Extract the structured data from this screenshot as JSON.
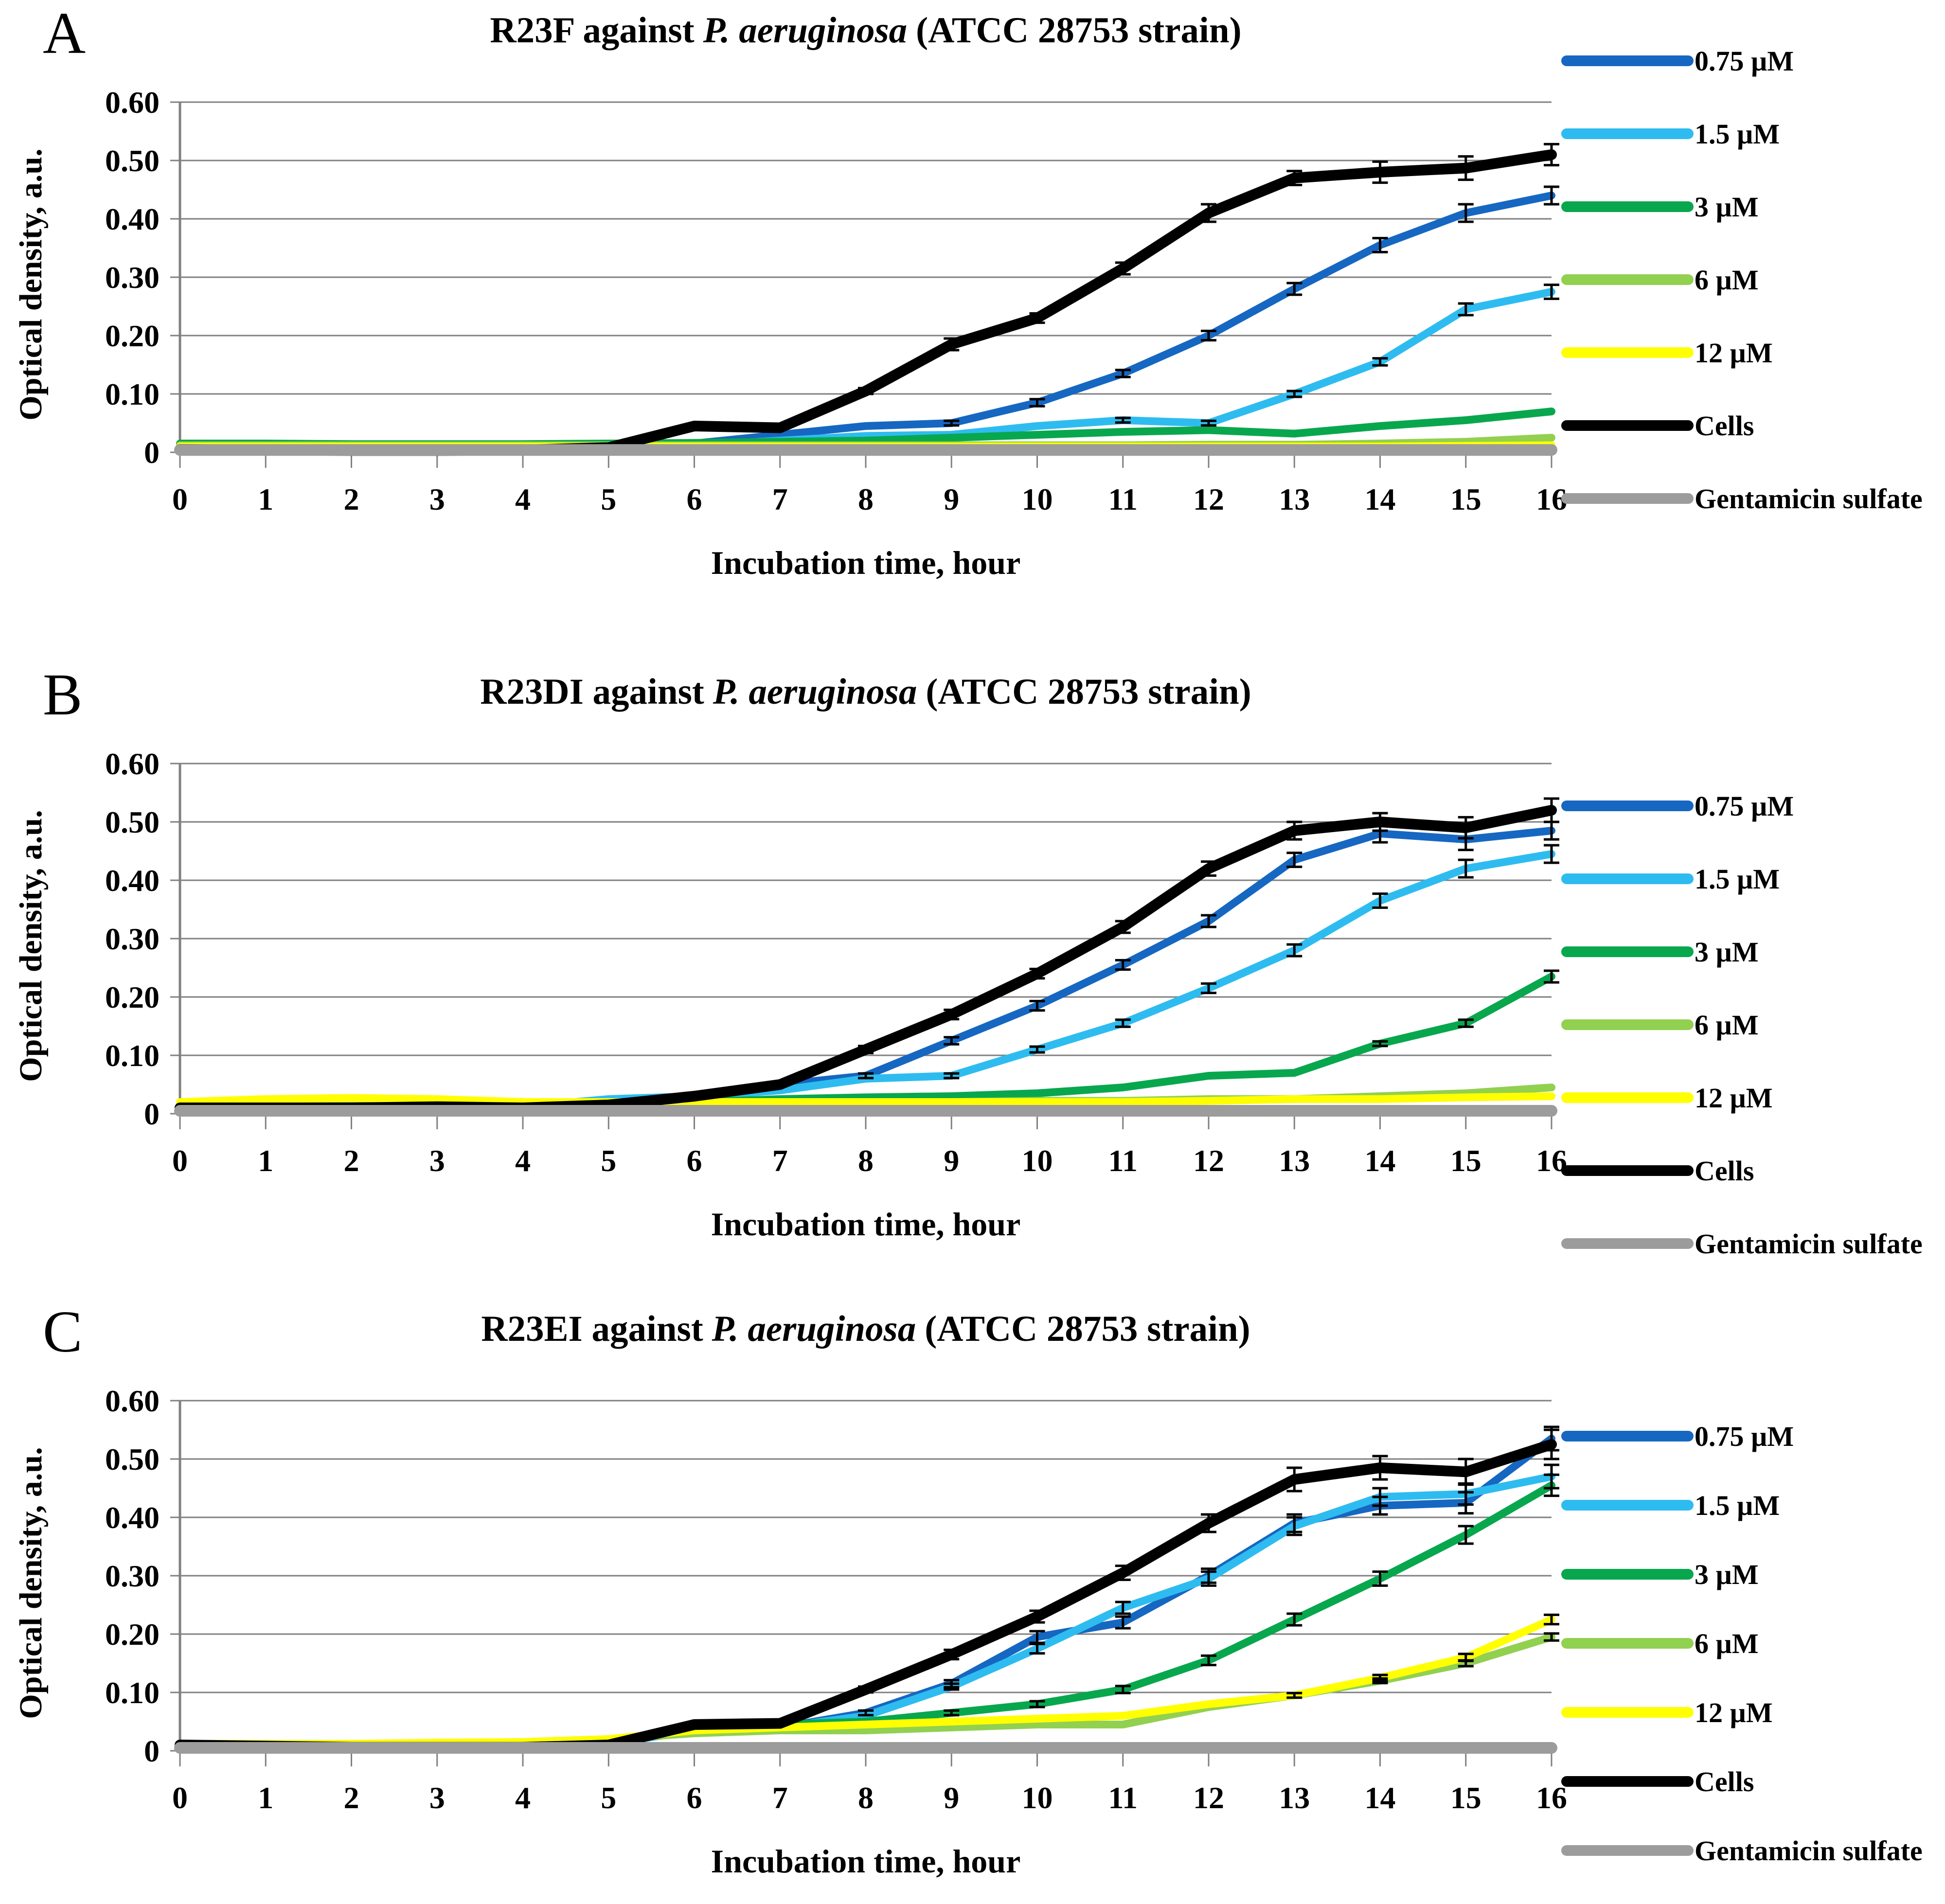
{
  "legend": {
    "entries": [
      {
        "label": "0.75 µM",
        "color": "#1667C1"
      },
      {
        "label": "1.5 µM",
        "color": "#2EBCF0"
      },
      {
        "label": "3 µM",
        "color": "#08A74E"
      },
      {
        "label": "6 µM",
        "color": "#92D050"
      },
      {
        "label": "12 µM",
        "color": "#FFFF00"
      },
      {
        "label": "Cells",
        "color": "#000000"
      },
      {
        "label": "Gentamicin sulfate",
        "color": "#9C9C9C"
      }
    ]
  },
  "chart_data": [
    {
      "type": "line",
      "panel_label": "A",
      "title": "R23F against P. aeruginosa (ATCC 28753 strain)",
      "title_prefix": "R23F against",
      "title_species": "P. aeruginosa",
      "title_suffix": "(ATCC 28753 strain)",
      "xlabel": "Incubation time, hour",
      "ylabel": "Optical density, a.u.",
      "x": [
        0,
        1,
        2,
        3,
        4,
        5,
        6,
        7,
        8,
        9,
        10,
        11,
        12,
        13,
        14,
        15,
        16
      ],
      "ylim": [
        0,
        0.6
      ],
      "ystep": 0.1,
      "yticks": [
        "0.60",
        "0.50",
        "0.40",
        "0.30",
        "0.20",
        "0.10",
        "0"
      ],
      "grid": true,
      "grid_color": "#808080",
      "legend_position": "right",
      "series": [
        {
          "name": "0.75 µM",
          "color": "#1667C1",
          "width": 16,
          "values": [
            0.01,
            0.01,
            0.008,
            0.008,
            0.008,
            0.01,
            0.015,
            0.03,
            0.045,
            0.05,
            0.085,
            0.135,
            0.2,
            0.28,
            0.355,
            0.41,
            0.44
          ],
          "errors": [
            0,
            0,
            0,
            0,
            0,
            0,
            0,
            0,
            0,
            0.004,
            0.006,
            0.006,
            0.008,
            0.01,
            0.012,
            0.015,
            0.015
          ]
        },
        {
          "name": "1.5 µM",
          "color": "#2EBCF0",
          "width": 16,
          "values": [
            0.01,
            0.01,
            0.008,
            0.008,
            0.008,
            0.01,
            0.012,
            0.02,
            0.028,
            0.03,
            0.045,
            0.055,
            0.05,
            0.1,
            0.155,
            0.245,
            0.275
          ],
          "errors": [
            0,
            0,
            0,
            0,
            0,
            0,
            0,
            0,
            0,
            0,
            0,
            0.004,
            0.004,
            0.005,
            0.006,
            0.01,
            0.012
          ]
        },
        {
          "name": "3 µM",
          "color": "#08A74E",
          "width": 16,
          "values": [
            0.015,
            0.015,
            0.014,
            0.014,
            0.014,
            0.015,
            0.016,
            0.018,
            0.02,
            0.025,
            0.03,
            0.035,
            0.038,
            0.032,
            0.045,
            0.055,
            0.07
          ],
          "errors": [
            0,
            0,
            0,
            0,
            0,
            0,
            0,
            0,
            0,
            0,
            0,
            0,
            0,
            0,
            0,
            0,
            0
          ]
        },
        {
          "name": "6 µM",
          "color": "#92D050",
          "width": 16,
          "values": [
            0.012,
            0.012,
            0.012,
            0.012,
            0.012,
            0.012,
            0.012,
            0.012,
            0.012,
            0.012,
            0.012,
            0.012,
            0.013,
            0.013,
            0.015,
            0.018,
            0.025
          ],
          "errors": [
            0,
            0,
            0,
            0,
            0,
            0,
            0,
            0,
            0,
            0,
            0,
            0,
            0,
            0,
            0,
            0,
            0
          ]
        },
        {
          "name": "12 µM",
          "color": "#FFFF00",
          "width": 16,
          "values": [
            0.01,
            0.01,
            0.01,
            0.01,
            0.01,
            0.01,
            0.01,
            0.01,
            0.01,
            0.01,
            0.01,
            0.01,
            0.01,
            0.01,
            0.01,
            0.011,
            0.012
          ],
          "errors": [
            0,
            0,
            0,
            0,
            0,
            0,
            0,
            0,
            0,
            0,
            0,
            0,
            0,
            0,
            0,
            0,
            0
          ]
        },
        {
          "name": "Cells",
          "color": "#000000",
          "width": 22,
          "values": [
            0.005,
            0.004,
            0.003,
            0.003,
            0.004,
            0.008,
            0.045,
            0.042,
            0.105,
            0.185,
            0.23,
            0.315,
            0.41,
            0.47,
            0.48,
            0.487,
            0.51
          ],
          "errors": [
            0,
            0,
            0,
            0,
            0,
            0,
            0,
            0,
            0.005,
            0.01,
            0.008,
            0.01,
            0.015,
            0.012,
            0.018,
            0.02,
            0.018
          ]
        },
        {
          "name": "Gentamicin sulfate",
          "color": "#9C9C9C",
          "width": 24,
          "values": [
            0.004,
            0.004,
            0.004,
            0.004,
            0.004,
            0.004,
            0.004,
            0.004,
            0.004,
            0.004,
            0.004,
            0.004,
            0.004,
            0.004,
            0.004,
            0.004,
            0.004
          ],
          "errors": [
            0,
            0,
            0,
            0,
            0,
            0,
            0,
            0,
            0,
            0,
            0,
            0,
            0,
            0,
            0,
            0,
            0
          ]
        }
      ]
    },
    {
      "type": "line",
      "panel_label": "B",
      "title": "R23DI against P. aeruginosa (ATCC 28753 strain)",
      "title_prefix": "R23DI against",
      "title_species": "P. aeruginosa",
      "title_suffix": "(ATCC 28753 strain)",
      "xlabel": "Incubation time, hour",
      "ylabel": "Optical density, a.u.",
      "x": [
        0,
        1,
        2,
        3,
        4,
        5,
        6,
        7,
        8,
        9,
        10,
        11,
        12,
        13,
        14,
        15,
        16
      ],
      "ylim": [
        0,
        0.6
      ],
      "ystep": 0.1,
      "yticks": [
        "0.60",
        "0.50",
        "0.40",
        "0.30",
        "0.20",
        "0.10",
        "0"
      ],
      "grid": true,
      "grid_color": "#808080",
      "legend_position": "right",
      "series": [
        {
          "name": "0.75 µM",
          "color": "#1667C1",
          "width": 16,
          "values": [
            0.015,
            0.015,
            0.015,
            0.015,
            0.012,
            0.02,
            0.03,
            0.05,
            0.065,
            0.125,
            0.185,
            0.255,
            0.33,
            0.435,
            0.48,
            0.47,
            0.485
          ],
          "errors": [
            0,
            0,
            0,
            0,
            0,
            0,
            0,
            0,
            0.004,
            0.006,
            0.008,
            0.008,
            0.01,
            0.012,
            0.015,
            0.018,
            0.015
          ]
        },
        {
          "name": "1.5 µM",
          "color": "#2EBCF0",
          "width": 16,
          "values": [
            0.015,
            0.015,
            0.015,
            0.015,
            0.012,
            0.025,
            0.03,
            0.04,
            0.06,
            0.065,
            0.11,
            0.155,
            0.215,
            0.28,
            0.365,
            0.42,
            0.445
          ],
          "errors": [
            0,
            0,
            0,
            0,
            0,
            0,
            0,
            0,
            0,
            0.004,
            0.005,
            0.006,
            0.008,
            0.01,
            0.012,
            0.015,
            0.015
          ]
        },
        {
          "name": "3 µM",
          "color": "#08A74E",
          "width": 16,
          "values": [
            0.015,
            0.018,
            0.02,
            0.02,
            0.015,
            0.018,
            0.02,
            0.025,
            0.028,
            0.03,
            0.035,
            0.045,
            0.065,
            0.07,
            0.12,
            0.155,
            0.235
          ],
          "errors": [
            0,
            0,
            0,
            0,
            0,
            0,
            0,
            0,
            0,
            0,
            0,
            0,
            0,
            0,
            0.004,
            0.006,
            0.01
          ]
        },
        {
          "name": "6 µM",
          "color": "#92D050",
          "width": 16,
          "values": [
            0.015,
            0.018,
            0.02,
            0.02,
            0.015,
            0.015,
            0.015,
            0.018,
            0.02,
            0.02,
            0.022,
            0.022,
            0.025,
            0.025,
            0.03,
            0.035,
            0.045
          ],
          "errors": [
            0,
            0,
            0,
            0,
            0,
            0,
            0,
            0,
            0,
            0,
            0,
            0,
            0,
            0,
            0,
            0,
            0
          ]
        },
        {
          "name": "12 µM",
          "color": "#FFFF00",
          "width": 16,
          "values": [
            0.02,
            0.025,
            0.027,
            0.025,
            0.02,
            0.02,
            0.02,
            0.02,
            0.02,
            0.02,
            0.02,
            0.02,
            0.022,
            0.025,
            0.025,
            0.028,
            0.03
          ],
          "errors": [
            0,
            0,
            0,
            0,
            0,
            0,
            0,
            0,
            0,
            0,
            0,
            0,
            0,
            0,
            0,
            0,
            0
          ]
        },
        {
          "name": "Cells",
          "color": "#000000",
          "width": 22,
          "values": [
            0.01,
            0.01,
            0.01,
            0.012,
            0.01,
            0.015,
            0.03,
            0.05,
            0.11,
            0.17,
            0.24,
            0.32,
            0.42,
            0.485,
            0.5,
            0.49,
            0.52
          ],
          "errors": [
            0,
            0,
            0,
            0,
            0,
            0,
            0,
            0,
            0.006,
            0.008,
            0.008,
            0.01,
            0.012,
            0.015,
            0.015,
            0.018,
            0.02
          ]
        },
        {
          "name": "Gentamicin sulfate",
          "color": "#9C9C9C",
          "width": 24,
          "values": [
            0.005,
            0.005,
            0.005,
            0.005,
            0.005,
            0.005,
            0.005,
            0.005,
            0.005,
            0.005,
            0.005,
            0.005,
            0.005,
            0.005,
            0.005,
            0.005,
            0.005
          ],
          "errors": [
            0,
            0,
            0,
            0,
            0,
            0,
            0,
            0,
            0,
            0,
            0,
            0,
            0,
            0,
            0,
            0,
            0
          ]
        }
      ]
    },
    {
      "type": "line",
      "panel_label": "C",
      "title": "R23EI against P. aeruginosa (ATCC 28753 strain)",
      "title_prefix": "R23EI against",
      "title_species": "P. aeruginosa",
      "title_suffix": "(ATCC 28753 strain)",
      "xlabel": "Incubation time, hour",
      "ylabel": "Optical density, a.u.",
      "x": [
        0,
        1,
        2,
        3,
        4,
        5,
        6,
        7,
        8,
        9,
        10,
        11,
        12,
        13,
        14,
        15,
        16
      ],
      "ylim": [
        0,
        0.6
      ],
      "ystep": 0.1,
      "yticks": [
        "0.60",
        "0.50",
        "0.40",
        "0.30",
        "0.20",
        "0.10",
        "0"
      ],
      "grid": true,
      "grid_color": "#808080",
      "legend_position": "right",
      "series": [
        {
          "name": "0.75 µM",
          "color": "#1667C1",
          "width": 16,
          "values": [
            0.01,
            0.01,
            0.008,
            0.008,
            0.008,
            0.012,
            0.035,
            0.04,
            0.065,
            0.115,
            0.195,
            0.22,
            0.3,
            0.39,
            0.42,
            0.425,
            0.535
          ],
          "errors": [
            0,
            0,
            0,
            0,
            0,
            0,
            0,
            0,
            0.004,
            0.006,
            0.01,
            0.01,
            0.012,
            0.015,
            0.015,
            0.018,
            0.02
          ]
        },
        {
          "name": "1.5 µM",
          "color": "#2EBCF0",
          "width": 16,
          "values": [
            0.01,
            0.01,
            0.008,
            0.008,
            0.008,
            0.012,
            0.035,
            0.04,
            0.06,
            0.11,
            0.175,
            0.245,
            0.295,
            0.385,
            0.435,
            0.44,
            0.47
          ],
          "errors": [
            0,
            0,
            0,
            0,
            0,
            0,
            0,
            0,
            0,
            0.005,
            0.008,
            0.01,
            0.012,
            0.015,
            0.015,
            0.018,
            0.02
          ]
        },
        {
          "name": "3 µM",
          "color": "#08A74E",
          "width": 16,
          "values": [
            0.012,
            0.012,
            0.012,
            0.012,
            0.012,
            0.015,
            0.035,
            0.045,
            0.05,
            0.065,
            0.08,
            0.105,
            0.155,
            0.225,
            0.295,
            0.37,
            0.455
          ],
          "errors": [
            0,
            0,
            0,
            0,
            0,
            0,
            0,
            0,
            0,
            0.004,
            0.005,
            0.006,
            0.008,
            0.01,
            0.012,
            0.015,
            0.018
          ]
        },
        {
          "name": "6 µM",
          "color": "#92D050",
          "width": 16,
          "values": [
            0.012,
            0.012,
            0.01,
            0.012,
            0.015,
            0.02,
            0.03,
            0.035,
            0.035,
            0.04,
            0.045,
            0.045,
            0.075,
            0.095,
            0.12,
            0.15,
            0.195
          ],
          "errors": [
            0,
            0,
            0,
            0,
            0,
            0,
            0,
            0,
            0,
            0,
            0,
            0,
            0,
            0,
            0.004,
            0.005,
            0.006
          ]
        },
        {
          "name": "12 µM",
          "color": "#FFFF00",
          "width": 16,
          "values": [
            0.012,
            0.012,
            0.012,
            0.014,
            0.015,
            0.02,
            0.035,
            0.04,
            0.045,
            0.05,
            0.055,
            0.06,
            0.08,
            0.095,
            0.125,
            0.16,
            0.225
          ],
          "errors": [
            0,
            0,
            0,
            0,
            0,
            0,
            0,
            0,
            0,
            0,
            0,
            0,
            0,
            0.004,
            0.005,
            0.006,
            0.008
          ]
        },
        {
          "name": "Cells",
          "color": "#000000",
          "width": 22,
          "values": [
            0.01,
            0.008,
            0.006,
            0.006,
            0.006,
            0.01,
            0.045,
            0.047,
            0.105,
            0.165,
            0.23,
            0.305,
            0.39,
            0.465,
            0.485,
            0.478,
            0.525
          ],
          "errors": [
            0,
            0,
            0,
            0,
            0,
            0,
            0,
            0,
            0.005,
            0.008,
            0.01,
            0.012,
            0.015,
            0.02,
            0.02,
            0.022,
            0.025
          ]
        },
        {
          "name": "Gentamicin sulfate",
          "color": "#9C9C9C",
          "width": 24,
          "values": [
            0.005,
            0.005,
            0.005,
            0.005,
            0.005,
            0.005,
            0.005,
            0.005,
            0.005,
            0.005,
            0.005,
            0.005,
            0.005,
            0.005,
            0.005,
            0.005,
            0.005
          ],
          "errors": [
            0,
            0,
            0,
            0,
            0,
            0,
            0,
            0,
            0,
            0,
            0,
            0,
            0,
            0,
            0,
            0,
            0
          ]
        }
      ]
    }
  ]
}
